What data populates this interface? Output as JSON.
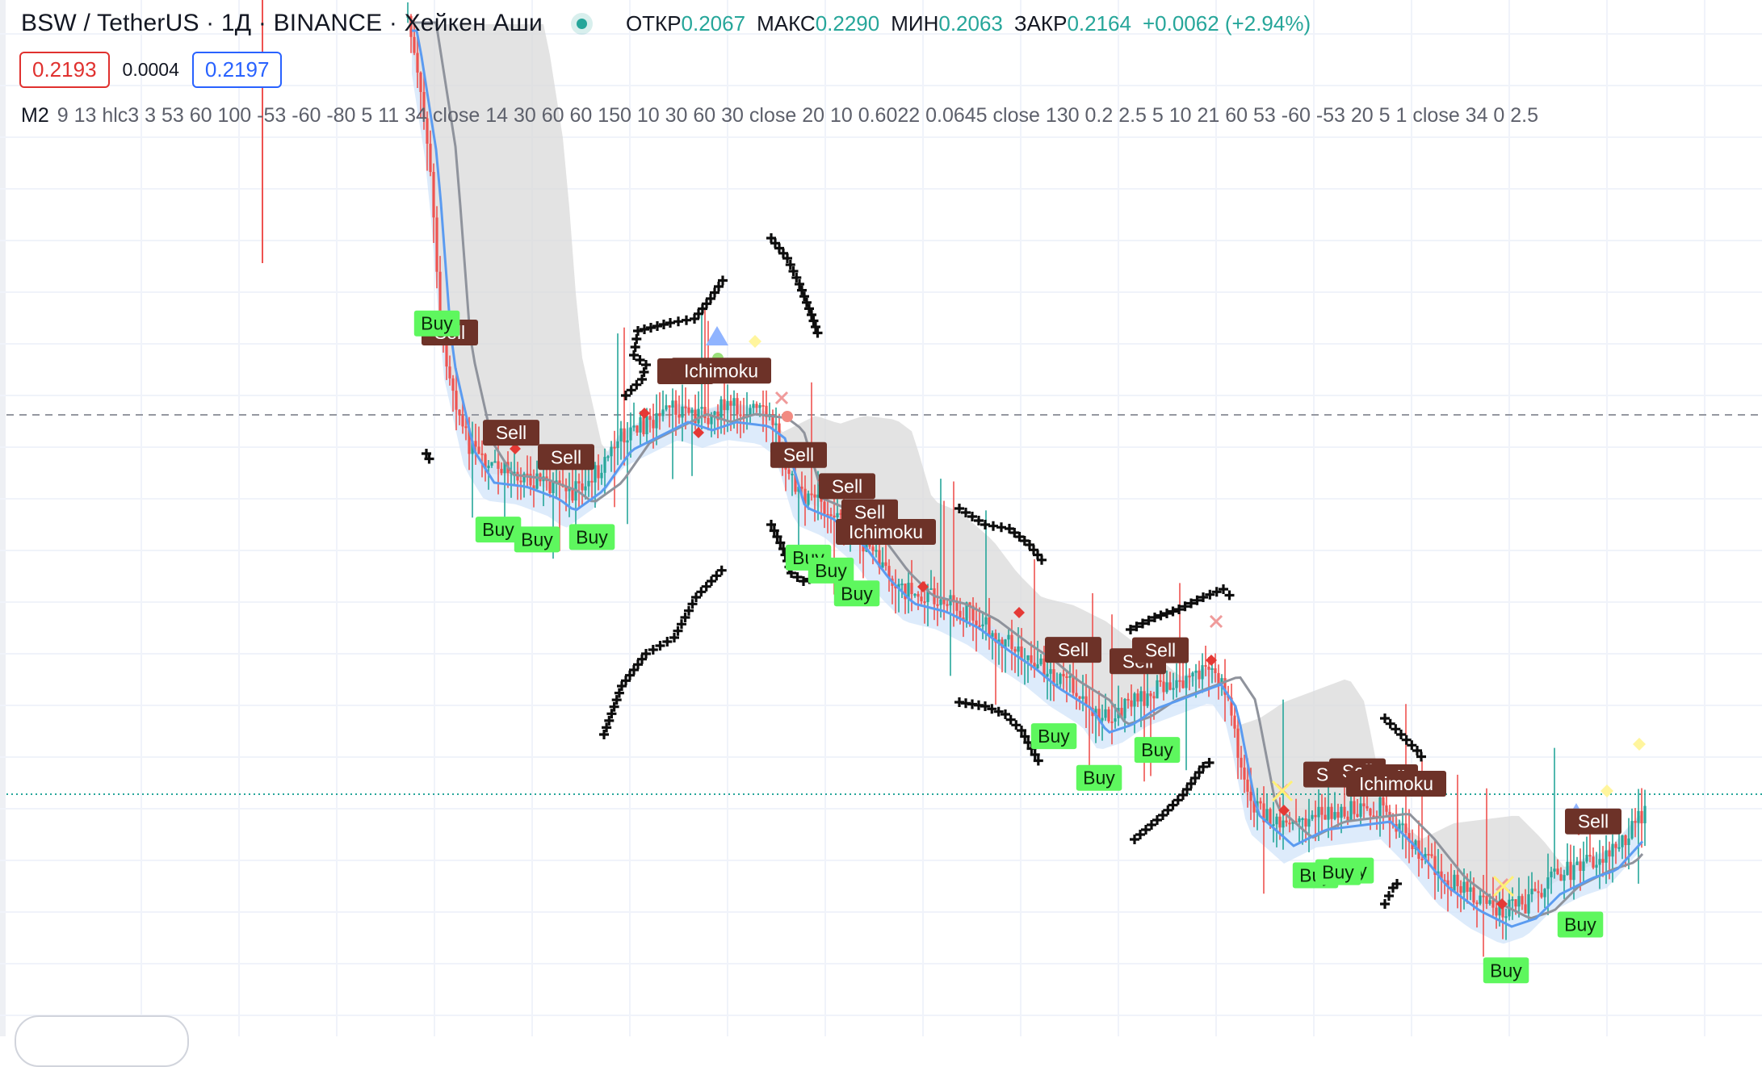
{
  "header": {
    "symbol_title": "BSW / TetherUS · 1Д · BINANCE · Хейкен Аши",
    "ohlc": {
      "open_label": "ОТКР",
      "open": "0.2067",
      "high_label": "МАКС",
      "high": "0.2290",
      "low_label": "МИН",
      "low": "0.2063",
      "close_label": "ЗАКР",
      "close": "0.2164",
      "change": "+0.0062 (+2.94%)"
    }
  },
  "quote": {
    "sell": "0.2193",
    "spread": "0.0004",
    "buy": "0.2197"
  },
  "indicator": {
    "name": "M2",
    "params": "9 13 hlc3 3 53 60 100 -53 -60 -80 5 11 34 close 14 30 60 60 150 10 30 60 30 close 20 10 0.6022 0.0645 close 130 0.2 2.5 5 10 21 60 53 -60 -53 20 5 1 close 34 0 2.5"
  },
  "colors": {
    "up": "#26a69a",
    "down": "#ef5350",
    "buy_label_bg": "#5ef75e",
    "sell_label_bg": "#6d3228",
    "cloud": "#d9d9d9",
    "blue_band": "#cfe2f9",
    "gray_line": "#8f939c",
    "blue_line": "#5b9bf0"
  },
  "chart_data": {
    "type": "candlestick",
    "markers": [
      {
        "kind": "sell",
        "text": "Sell",
        "bar": 13
      },
      {
        "kind": "buy",
        "text": "Buy",
        "bar": 9
      },
      {
        "kind": "sell",
        "text": "Sell",
        "bar": 32
      },
      {
        "kind": "buy",
        "text": "Buy",
        "bar": 28
      },
      {
        "kind": "buy",
        "text": "Buy",
        "bar": 40
      },
      {
        "kind": "sell",
        "text": "Sell",
        "bar": 49
      },
      {
        "kind": "buy",
        "text": "Buy",
        "bar": 57
      },
      {
        "kind": "sell",
        "text": "Sell",
        "bar": 86
      },
      {
        "kind": "sell",
        "text": "Ichimoku",
        "bar": 97
      },
      {
        "kind": "sell",
        "text": "Sell",
        "bar": 121
      },
      {
        "kind": "buy",
        "text": "Buy",
        "bar": 124
      },
      {
        "kind": "buy",
        "text": "Buy",
        "bar": 131
      },
      {
        "kind": "sell",
        "text": "Sell",
        "bar": 136
      },
      {
        "kind": "sell",
        "text": "Sell",
        "bar": 143
      },
      {
        "kind": "buy",
        "text": "Buy",
        "bar": 139
      },
      {
        "kind": "sell",
        "text": "Ichimoku",
        "bar": 148
      },
      {
        "kind": "sell",
        "text": "Sell",
        "bar": 206
      },
      {
        "kind": "buy",
        "text": "Buy",
        "bar": 214
      },
      {
        "kind": "buy",
        "text": "Buy",
        "bar": 200
      },
      {
        "kind": "sell",
        "text": "Sell",
        "bar": 226
      },
      {
        "kind": "sell",
        "text": "Sell",
        "bar": 233
      },
      {
        "kind": "buy",
        "text": "Buy",
        "bar": 232
      },
      {
        "kind": "sell",
        "text": "Sell",
        "bar": 286
      },
      {
        "kind": "sell",
        "text": "Sell",
        "bar": 294
      },
      {
        "kind": "buy",
        "text": "Buy",
        "bar": 281
      },
      {
        "kind": "buy",
        "text": "Buy",
        "bar": 292
      },
      {
        "kind": "buy",
        "text": "Buy",
        "bar": 288
      },
      {
        "kind": "sell",
        "text": "Sell",
        "bar": 304
      },
      {
        "kind": "sell",
        "text": "Ichimoku",
        "bar": 306
      },
      {
        "kind": "buy",
        "text": "Buy",
        "bar": 340
      },
      {
        "kind": "sell",
        "text": "Sell",
        "bar": 367
      },
      {
        "kind": "buy",
        "text": "Buy",
        "bar": 363
      }
    ]
  }
}
